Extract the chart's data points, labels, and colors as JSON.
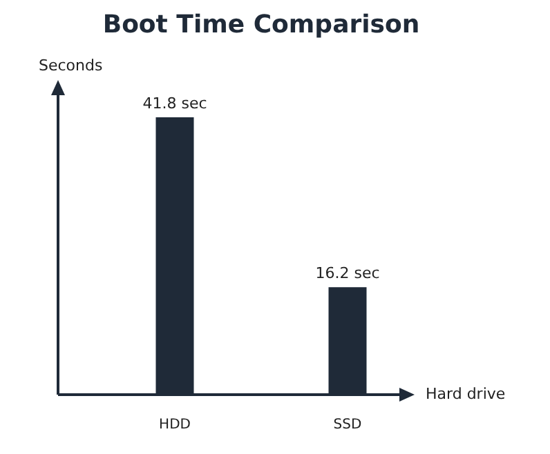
{
  "chart_data": {
    "type": "bar",
    "title": "Boot Time Comparison",
    "xlabel": "Hard drive",
    "ylabel": "Seconds",
    "categories": [
      "HDD",
      "SSD"
    ],
    "values": [
      41.8,
      16.2
    ],
    "value_labels": [
      "41.8 sec",
      "16.2 sec"
    ],
    "color": "#1f2a38",
    "grid": false,
    "legend": false
  }
}
